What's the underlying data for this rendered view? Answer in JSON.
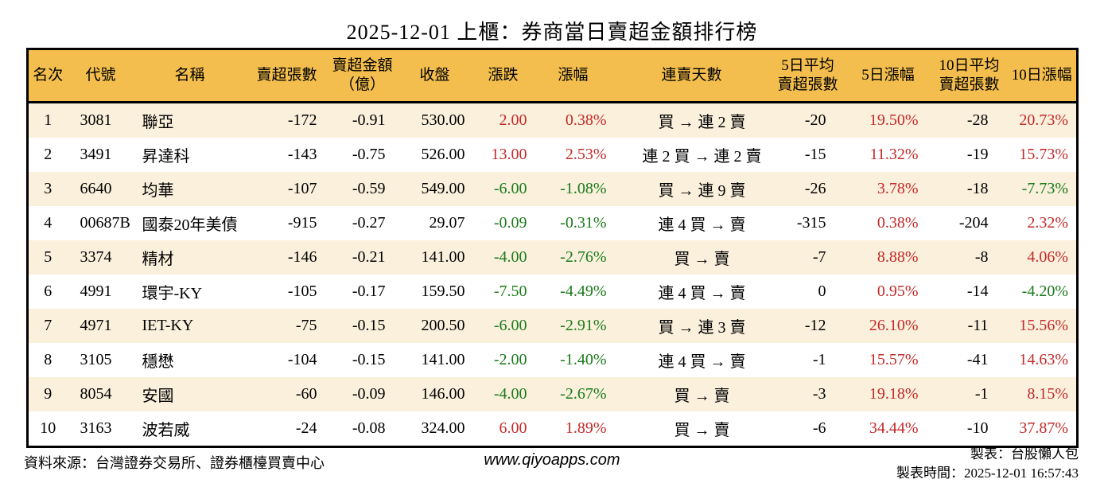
{
  "colors": {
    "red": "#c32a2a",
    "green": "#1a7a1a",
    "header_bg": "#f3be4d",
    "stripe_bg": "#faf0dc",
    "border": "#000000"
  },
  "chart_data": {
    "type": "table",
    "title": "2025-12-01 上櫃：券商當日賣超金額排行榜",
    "columns": [
      {
        "key": "rank",
        "label": "名次"
      },
      {
        "key": "code",
        "label": "代號"
      },
      {
        "key": "name",
        "label": "名稱"
      },
      {
        "key": "sell_lots",
        "label": "賣超張數"
      },
      {
        "key": "sell_amount",
        "label": "賣超金額\n（億）"
      },
      {
        "key": "close",
        "label": "收盤"
      },
      {
        "key": "change",
        "label": "漲跌"
      },
      {
        "key": "change_pct",
        "label": "漲幅"
      },
      {
        "key": "streak",
        "label": "連賣天數"
      },
      {
        "key": "avg5",
        "label": "5日平均\n賣超張數"
      },
      {
        "key": "pct5",
        "label": "5日漲幅"
      },
      {
        "key": "avg10",
        "label": "10日平均\n賣超張數"
      },
      {
        "key": "pct10",
        "label": "10日漲幅"
      }
    ],
    "rows": [
      {
        "rank": "1",
        "code": "3081",
        "name": "聯亞",
        "sell_lots": "-172",
        "sell_amount": "-0.91",
        "close": "530.00",
        "change": {
          "v": "2.00",
          "c": "red"
        },
        "change_pct": {
          "v": "0.38%",
          "c": "red"
        },
        "streak": "買 → 連 2 賣",
        "avg5": "-20",
        "pct5": {
          "v": "19.50%",
          "c": "red"
        },
        "avg10": "-28",
        "pct10": {
          "v": "20.73%",
          "c": "red"
        }
      },
      {
        "rank": "2",
        "code": "3491",
        "name": "昇達科",
        "sell_lots": "-143",
        "sell_amount": "-0.75",
        "close": "526.00",
        "change": {
          "v": "13.00",
          "c": "red"
        },
        "change_pct": {
          "v": "2.53%",
          "c": "red"
        },
        "streak": "連 2 買 → 連 2 賣",
        "avg5": "-15",
        "pct5": {
          "v": "11.32%",
          "c": "red"
        },
        "avg10": "-19",
        "pct10": {
          "v": "15.73%",
          "c": "red"
        }
      },
      {
        "rank": "3",
        "code": "6640",
        "name": "均華",
        "sell_lots": "-107",
        "sell_amount": "-0.59",
        "close": "549.00",
        "change": {
          "v": "-6.00",
          "c": "green"
        },
        "change_pct": {
          "v": "-1.08%",
          "c": "green"
        },
        "streak": "買 → 連 9 賣",
        "avg5": "-26",
        "pct5": {
          "v": "3.78%",
          "c": "red"
        },
        "avg10": "-18",
        "pct10": {
          "v": "-7.73%",
          "c": "green"
        }
      },
      {
        "rank": "4",
        "code": "00687B",
        "name": "國泰20年美債",
        "sell_lots": "-915",
        "sell_amount": "-0.27",
        "close": "29.07",
        "change": {
          "v": "-0.09",
          "c": "green"
        },
        "change_pct": {
          "v": "-0.31%",
          "c": "green"
        },
        "streak": "連 4 買 → 賣",
        "avg5": "-315",
        "pct5": {
          "v": "0.38%",
          "c": "red"
        },
        "avg10": "-204",
        "pct10": {
          "v": "2.32%",
          "c": "red"
        }
      },
      {
        "rank": "5",
        "code": "3374",
        "name": "精材",
        "sell_lots": "-146",
        "sell_amount": "-0.21",
        "close": "141.00",
        "change": {
          "v": "-4.00",
          "c": "green"
        },
        "change_pct": {
          "v": "-2.76%",
          "c": "green"
        },
        "streak": "買 → 賣",
        "avg5": "-7",
        "pct5": {
          "v": "8.88%",
          "c": "red"
        },
        "avg10": "-8",
        "pct10": {
          "v": "4.06%",
          "c": "red"
        }
      },
      {
        "rank": "6",
        "code": "4991",
        "name": "環宇-KY",
        "sell_lots": "-105",
        "sell_amount": "-0.17",
        "close": "159.50",
        "change": {
          "v": "-7.50",
          "c": "green"
        },
        "change_pct": {
          "v": "-4.49%",
          "c": "green"
        },
        "streak": "連 4 買 → 賣",
        "avg5": "0",
        "pct5": {
          "v": "0.95%",
          "c": "red"
        },
        "avg10": "-14",
        "pct10": {
          "v": "-4.20%",
          "c": "green"
        }
      },
      {
        "rank": "7",
        "code": "4971",
        "name": "IET-KY",
        "sell_lots": "-75",
        "sell_amount": "-0.15",
        "close": "200.50",
        "change": {
          "v": "-6.00",
          "c": "green"
        },
        "change_pct": {
          "v": "-2.91%",
          "c": "green"
        },
        "streak": "買 → 連 3 賣",
        "avg5": "-12",
        "pct5": {
          "v": "26.10%",
          "c": "red"
        },
        "avg10": "-11",
        "pct10": {
          "v": "15.56%",
          "c": "red"
        }
      },
      {
        "rank": "8",
        "code": "3105",
        "name": "穩懋",
        "sell_lots": "-104",
        "sell_amount": "-0.15",
        "close": "141.00",
        "change": {
          "v": "-2.00",
          "c": "green"
        },
        "change_pct": {
          "v": "-1.40%",
          "c": "green"
        },
        "streak": "連 4 買 → 賣",
        "avg5": "-1",
        "pct5": {
          "v": "15.57%",
          "c": "red"
        },
        "avg10": "-41",
        "pct10": {
          "v": "14.63%",
          "c": "red"
        }
      },
      {
        "rank": "9",
        "code": "8054",
        "name": "安國",
        "sell_lots": "-60",
        "sell_amount": "-0.09",
        "close": "146.00",
        "change": {
          "v": "-4.00",
          "c": "green"
        },
        "change_pct": {
          "v": "-2.67%",
          "c": "green"
        },
        "streak": "買 → 賣",
        "avg5": "-3",
        "pct5": {
          "v": "19.18%",
          "c": "red"
        },
        "avg10": "-1",
        "pct10": {
          "v": "8.15%",
          "c": "red"
        }
      },
      {
        "rank": "10",
        "code": "3163",
        "name": "波若威",
        "sell_lots": "-24",
        "sell_amount": "-0.08",
        "close": "324.00",
        "change": {
          "v": "6.00",
          "c": "red"
        },
        "change_pct": {
          "v": "1.89%",
          "c": "red"
        },
        "streak": "買 → 賣",
        "avg5": "-6",
        "pct5": {
          "v": "34.44%",
          "c": "red"
        },
        "avg10": "-10",
        "pct10": {
          "v": "37.87%",
          "c": "red"
        }
      }
    ]
  },
  "footer": {
    "source": "資料來源：台灣證券交易所、證券櫃檯買賣中心",
    "website": "www.qiyoapps.com",
    "made_by": "製表：台股懶人包",
    "made_at": "製表時間：2025-12-01 16:57:43"
  }
}
